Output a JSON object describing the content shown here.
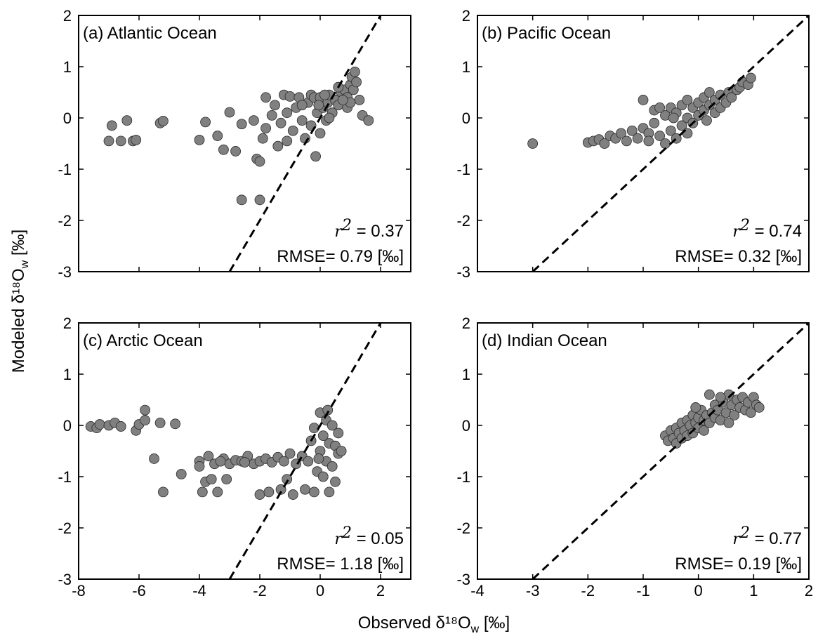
{
  "figure": {
    "xlabel": "Observed δ¹⁸O",
    "xlabel_sub": "w",
    "xlabel_unit": " [‰]",
    "ylabel": "Modeled δ¹⁸O",
    "ylabel_sub": "w",
    "ylabel_unit": " [‰]"
  },
  "colors": {
    "marker": "#808080",
    "marker_edge": "#2a2a2a",
    "line": "#000000"
  },
  "chart_data": [
    {
      "type": "scatter",
      "title": "(a) Atlantic Ocean",
      "xlim": [
        -8,
        3
      ],
      "ylim": [
        -3,
        2
      ],
      "xticks": [
        -8,
        -6,
        -4,
        -2,
        0,
        2
      ],
      "yticks": [
        2,
        1,
        0,
        -1,
        -2,
        -3
      ],
      "show_xticklabels": false,
      "show_yticklabels": true,
      "reference_line": "1:1",
      "stats": {
        "r2_label": "r",
        "r2_sup": "2",
        "r2_value": "= 0.37",
        "rmse_label": "RMSE= 0.79 [‰]"
      },
      "points": [
        [
          -7.0,
          -0.45
        ],
        [
          -6.9,
          -0.15
        ],
        [
          -6.6,
          -0.45
        ],
        [
          -6.4,
          -0.05
        ],
        [
          -6.2,
          -0.45
        ],
        [
          -6.1,
          -0.43
        ],
        [
          -5.3,
          -0.1
        ],
        [
          -5.2,
          -0.06
        ],
        [
          -4.0,
          -0.43
        ],
        [
          -3.8,
          -0.08
        ],
        [
          -3.4,
          -0.35
        ],
        [
          -3.2,
          -0.62
        ],
        [
          -3.0,
          0.11
        ],
        [
          -2.8,
          -0.65
        ],
        [
          -2.6,
          -1.6
        ],
        [
          -2.6,
          -0.12
        ],
        [
          -2.2,
          -0.05
        ],
        [
          -2.1,
          -0.8
        ],
        [
          -2.0,
          -0.85
        ],
        [
          -2.0,
          -1.6
        ],
        [
          -1.9,
          -0.4
        ],
        [
          -1.8,
          0.4
        ],
        [
          -1.8,
          -0.2
        ],
        [
          -1.6,
          0.05
        ],
        [
          -1.5,
          0.25
        ],
        [
          -1.4,
          -0.55
        ],
        [
          -1.3,
          -0.1
        ],
        [
          -1.2,
          0.45
        ],
        [
          -1.1,
          -0.45
        ],
        [
          -1.1,
          0.1
        ],
        [
          -1.0,
          0.42
        ],
        [
          -0.9,
          -0.25
        ],
        [
          -0.8,
          0.2
        ],
        [
          -0.7,
          0.4
        ],
        [
          -0.6,
          -0.05
        ],
        [
          -0.5,
          -0.4
        ],
        [
          -0.4,
          0.3
        ],
        [
          -0.3,
          -0.15
        ],
        [
          -0.3,
          0.45
        ],
        [
          -0.2,
          0.4
        ],
        [
          -0.15,
          -0.75
        ],
        [
          -0.1,
          0.1
        ],
        [
          0.0,
          -0.3
        ],
        [
          0.0,
          0.4
        ],
        [
          0.1,
          0.2
        ],
        [
          0.2,
          -0.05
        ],
        [
          0.25,
          0.3
        ],
        [
          0.3,
          0.45
        ],
        [
          0.4,
          0.1
        ],
        [
          0.5,
          0.35
        ],
        [
          0.6,
          0.25
        ],
        [
          0.7,
          0.5
        ],
        [
          0.8,
          0.55
        ],
        [
          0.9,
          0.4
        ],
        [
          1.0,
          0.65
        ],
        [
          1.05,
          0.8
        ],
        [
          1.1,
          0.55
        ],
        [
          1.2,
          0.7
        ],
        [
          1.3,
          0.35
        ],
        [
          1.4,
          0.05
        ],
        [
          1.6,
          -0.05
        ],
        [
          0.9,
          0.2
        ],
        [
          0.6,
          0.6
        ],
        [
          0.3,
          0.0
        ],
        [
          -0.05,
          0.25
        ],
        [
          0.15,
          0.45
        ],
        [
          1.0,
          0.3
        ],
        [
          1.15,
          0.9
        ],
        [
          0.75,
          0.35
        ],
        [
          -0.6,
          0.25
        ]
      ]
    },
    {
      "type": "scatter",
      "title": "(b) Pacific Ocean",
      "xlim": [
        -4,
        2
      ],
      "ylim": [
        -3,
        2
      ],
      "xticks": [
        -4,
        -3,
        -2,
        -1,
        0,
        1,
        2
      ],
      "yticks": [
        2,
        1,
        0,
        -1,
        -2,
        -3
      ],
      "show_xticklabels": false,
      "show_yticklabels": true,
      "reference_line": "1:1",
      "stats": {
        "r2_label": "r",
        "r2_sup": "2",
        "r2_value": "= 0.74",
        "rmse_label": "RMSE= 0.32 [‰]"
      },
      "points": [
        [
          -3.0,
          -0.5
        ],
        [
          -2.0,
          -0.48
        ],
        [
          -1.9,
          -0.45
        ],
        [
          -1.8,
          -0.42
        ],
        [
          -1.7,
          -0.5
        ],
        [
          -1.6,
          -0.35
        ],
        [
          -1.5,
          -0.4
        ],
        [
          -1.4,
          -0.3
        ],
        [
          -1.3,
          -0.45
        ],
        [
          -1.2,
          -0.25
        ],
        [
          -1.1,
          -0.4
        ],
        [
          -1.0,
          -0.2
        ],
        [
          -1.0,
          0.35
        ],
        [
          -0.9,
          -0.3
        ],
        [
          -0.9,
          -0.45
        ],
        [
          -0.8,
          0.15
        ],
        [
          -0.8,
          -0.1
        ],
        [
          -0.7,
          -0.35
        ],
        [
          -0.6,
          0.05
        ],
        [
          -0.6,
          -0.5
        ],
        [
          -0.5,
          0.2
        ],
        [
          -0.5,
          -0.25
        ],
        [
          -0.4,
          0.1
        ],
        [
          -0.4,
          -0.4
        ],
        [
          -0.3,
          0.25
        ],
        [
          -0.3,
          -0.15
        ],
        [
          -0.2,
          0.0
        ],
        [
          -0.2,
          0.35
        ],
        [
          -0.1,
          0.2
        ],
        [
          -0.1,
          -0.1
        ],
        [
          0.0,
          0.3
        ],
        [
          0.0,
          0.05
        ],
        [
          0.1,
          0.4
        ],
        [
          0.1,
          0.15
        ],
        [
          0.2,
          0.25
        ],
        [
          0.2,
          0.5
        ],
        [
          0.3,
          0.35
        ],
        [
          0.3,
          0.1
        ],
        [
          0.4,
          0.45
        ],
        [
          0.4,
          0.2
        ],
        [
          0.5,
          0.3
        ],
        [
          0.55,
          0.5
        ],
        [
          0.6,
          0.4
        ],
        [
          0.7,
          0.55
        ],
        [
          0.75,
          0.6
        ],
        [
          0.8,
          0.7
        ],
        [
          0.9,
          0.65
        ],
        [
          0.95,
          0.78
        ],
        [
          -0.7,
          0.2
        ],
        [
          -0.2,
          -0.3
        ],
        [
          0.15,
          -0.05
        ],
        [
          -0.45,
          0.0
        ]
      ]
    },
    {
      "type": "scatter",
      "title": "(c) Arctic Ocean",
      "xlim": [
        -8,
        3
      ],
      "ylim": [
        -3,
        2
      ],
      "xticks": [
        -8,
        -6,
        -4,
        -2,
        0,
        2
      ],
      "yticks": [
        2,
        1,
        0,
        -1,
        -2,
        -3
      ],
      "show_xticklabels": true,
      "show_yticklabels": true,
      "reference_line": "1:1",
      "stats": {
        "r2_label": "r",
        "r2_sup": "2",
        "r2_value": "= 0.05",
        "rmse_label": "RMSE= 1.18 [‰]"
      },
      "points": [
        [
          -7.6,
          -0.02
        ],
        [
          -7.4,
          -0.05
        ],
        [
          -7.3,
          0.02
        ],
        [
          -7.0,
          0.0
        ],
        [
          -6.8,
          0.05
        ],
        [
          -6.6,
          -0.02
        ],
        [
          -6.1,
          -0.1
        ],
        [
          -6.0,
          0.02
        ],
        [
          -5.8,
          0.1
        ],
        [
          -5.8,
          0.3
        ],
        [
          -5.5,
          -0.65
        ],
        [
          -5.3,
          0.05
        ],
        [
          -5.2,
          -1.3
        ],
        [
          -4.8,
          0.03
        ],
        [
          -4.6,
          -0.95
        ],
        [
          -4.0,
          -0.7
        ],
        [
          -4.0,
          -0.8
        ],
        [
          -3.9,
          -1.3
        ],
        [
          -3.8,
          -1.1
        ],
        [
          -3.7,
          -0.6
        ],
        [
          -3.6,
          -1.05
        ],
        [
          -3.5,
          -0.75
        ],
        [
          -3.4,
          -1.3
        ],
        [
          -3.2,
          -0.65
        ],
        [
          -3.1,
          -1.05
        ],
        [
          -3.0,
          -0.75
        ],
        [
          -2.8,
          -0.68
        ],
        [
          -2.6,
          -0.7
        ],
        [
          -2.4,
          -0.6
        ],
        [
          -2.2,
          -0.75
        ],
        [
          -2.0,
          -1.35
        ],
        [
          -2.0,
          -0.7
        ],
        [
          -1.8,
          -0.65
        ],
        [
          -1.7,
          -1.3
        ],
        [
          -1.6,
          -0.72
        ],
        [
          -1.4,
          -0.62
        ],
        [
          -1.3,
          -1.25
        ],
        [
          -1.2,
          -0.7
        ],
        [
          -1.0,
          -0.55
        ],
        [
          -0.9,
          -1.35
        ],
        [
          -0.8,
          -0.75
        ],
        [
          -0.6,
          -0.6
        ],
        [
          -0.5,
          -1.25
        ],
        [
          -0.4,
          -0.7
        ],
        [
          -0.3,
          -0.3
        ],
        [
          -0.2,
          -1.3
        ],
        [
          -0.2,
          -0.05
        ],
        [
          -0.1,
          -0.9
        ],
        [
          0.0,
          0.25
        ],
        [
          0.0,
          -0.5
        ],
        [
          0.1,
          -1.0
        ],
        [
          0.1,
          -0.2
        ],
        [
          0.2,
          0.1
        ],
        [
          0.2,
          -0.7
        ],
        [
          0.3,
          -1.3
        ],
        [
          0.3,
          -0.35
        ],
        [
          0.4,
          0.0
        ],
        [
          0.4,
          -0.8
        ],
        [
          0.5,
          -0.4
        ],
        [
          0.5,
          -1.1
        ],
        [
          0.6,
          -0.15
        ],
        [
          0.6,
          -0.55
        ],
        [
          -0.05,
          -0.65
        ],
        [
          0.25,
          0.3
        ],
        [
          -2.5,
          -0.72
        ],
        [
          -3.3,
          -0.7
        ],
        [
          -1.1,
          -1.05
        ],
        [
          0.7,
          -0.5
        ]
      ]
    },
    {
      "type": "scatter",
      "title": "(d) Indian Ocean",
      "xlim": [
        -4,
        2
      ],
      "ylim": [
        -3,
        2
      ],
      "xticks": [
        -4,
        -3,
        -2,
        -1,
        0,
        1,
        2
      ],
      "yticks": [
        2,
        1,
        0,
        -1,
        -2,
        -3
      ],
      "show_xticklabels": true,
      "show_yticklabels": true,
      "reference_line": "1:1",
      "stats": {
        "r2_label": "r",
        "r2_sup": "2",
        "r2_value": "= 0.77",
        "rmse_label": "RMSE= 0.19 [‰]"
      },
      "points": [
        [
          -0.6,
          -0.2
        ],
        [
          -0.55,
          -0.3
        ],
        [
          -0.5,
          -0.1
        ],
        [
          -0.45,
          -0.25
        ],
        [
          -0.4,
          -0.05
        ],
        [
          -0.4,
          -0.35
        ],
        [
          -0.35,
          -0.15
        ],
        [
          -0.3,
          0.05
        ],
        [
          -0.3,
          -0.25
        ],
        [
          -0.25,
          -0.1
        ],
        [
          -0.2,
          0.1
        ],
        [
          -0.2,
          -0.2
        ],
        [
          -0.15,
          0.0
        ],
        [
          -0.1,
          0.2
        ],
        [
          -0.1,
          -0.15
        ],
        [
          -0.05,
          0.05
        ],
        [
          0.0,
          0.15
        ],
        [
          0.0,
          -0.05
        ],
        [
          0.05,
          0.3
        ],
        [
          0.1,
          0.1
        ],
        [
          0.1,
          -0.1
        ],
        [
          0.15,
          0.2
        ],
        [
          0.2,
          0.05
        ],
        [
          0.2,
          0.6
        ],
        [
          0.25,
          0.25
        ],
        [
          0.3,
          0.4
        ],
        [
          0.3,
          0.15
        ],
        [
          0.35,
          0.3
        ],
        [
          0.4,
          0.1
        ],
        [
          0.45,
          0.45
        ],
        [
          0.5,
          0.25
        ],
        [
          0.55,
          0.6
        ],
        [
          0.6,
          0.4
        ],
        [
          0.65,
          0.2
        ],
        [
          0.7,
          0.5
        ],
        [
          0.75,
          0.35
        ],
        [
          0.8,
          0.55
        ],
        [
          0.85,
          0.3
        ],
        [
          0.9,
          0.45
        ],
        [
          0.95,
          0.25
        ],
        [
          1.0,
          0.55
        ],
        [
          1.05,
          0.4
        ],
        [
          1.1,
          0.35
        ],
        [
          -0.05,
          0.35
        ],
        [
          0.4,
          0.55
        ],
        [
          0.55,
          0.05
        ]
      ]
    }
  ]
}
